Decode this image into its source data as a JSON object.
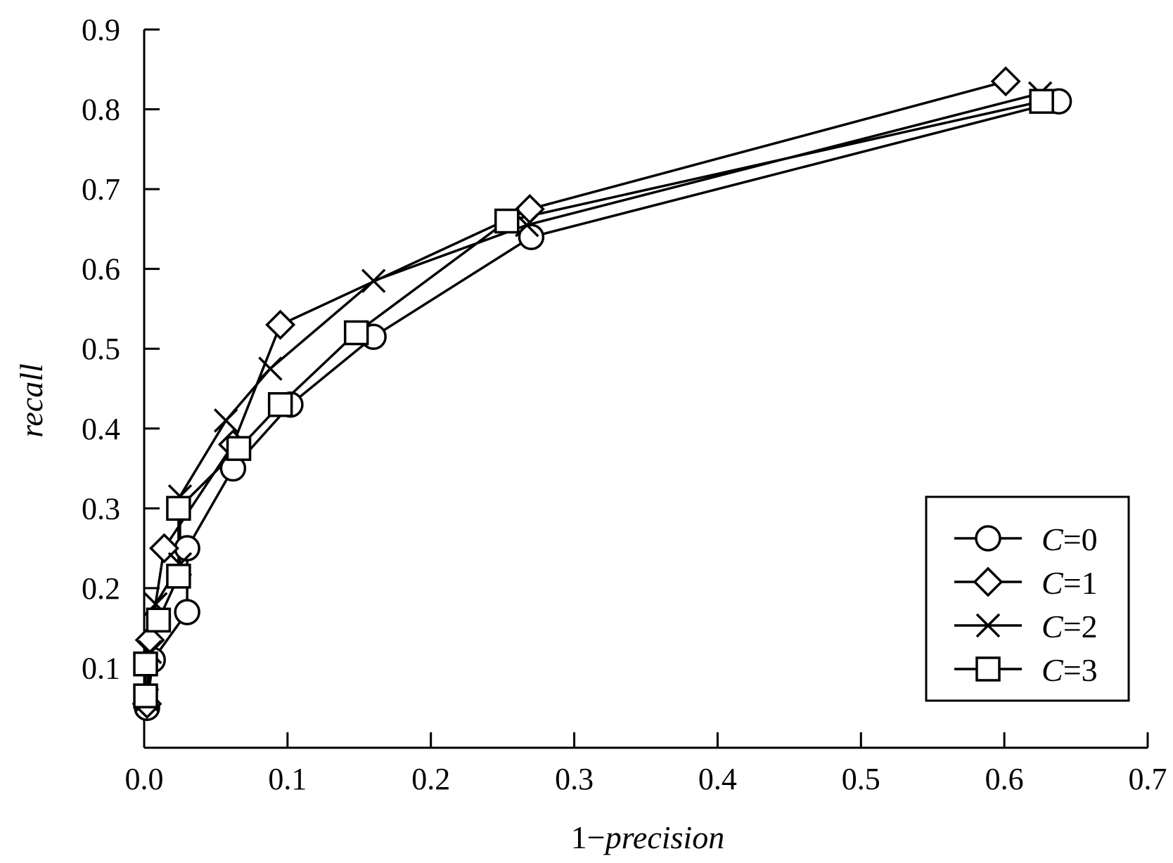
{
  "chart_data": {
    "type": "line",
    "title": "",
    "xlabel": {
      "prefix": "1−",
      "italic": "precision"
    },
    "ylabel": "recall",
    "xlim": [
      0,
      0.7
    ],
    "ylim": [
      0,
      0.9
    ],
    "xticks": [
      "0.0",
      "0.1",
      "0.2",
      "0.3",
      "0.4",
      "0.5",
      "0.6",
      "0.7"
    ],
    "yticks": [
      "0.1",
      "0.2",
      "0.3",
      "0.4",
      "0.5",
      "0.6",
      "0.7",
      "0.8",
      "0.9"
    ],
    "legend_position": "bottom-right",
    "grid": false,
    "series": [
      {
        "name_italic": "C",
        "name_rest": "=0",
        "marker": "circle",
        "points": [
          [
            0.002,
            0.05
          ],
          [
            0.006,
            0.11
          ],
          [
            0.03,
            0.17
          ],
          [
            0.03,
            0.25
          ],
          [
            0.062,
            0.35
          ],
          [
            0.102,
            0.43
          ],
          [
            0.16,
            0.515
          ],
          [
            0.27,
            0.64
          ],
          [
            0.638,
            0.81
          ]
        ]
      },
      {
        "name_italic": "C",
        "name_rest": "=1",
        "marker": "diamond",
        "points": [
          [
            0.002,
            0.055
          ],
          [
            0.004,
            0.135
          ],
          [
            0.014,
            0.25
          ],
          [
            0.062,
            0.38
          ],
          [
            0.095,
            0.53
          ],
          [
            0.269,
            0.675
          ],
          [
            0.601,
            0.835
          ]
        ]
      },
      {
        "name_italic": "C",
        "name_rest": "=2",
        "marker": "cross",
        "points": [
          [
            0.002,
            0.06
          ],
          [
            0.004,
            0.12
          ],
          [
            0.008,
            0.18
          ],
          [
            0.025,
            0.23
          ],
          [
            0.025,
            0.315
          ],
          [
            0.057,
            0.41
          ],
          [
            0.088,
            0.475
          ],
          [
            0.16,
            0.585
          ],
          [
            0.267,
            0.655
          ],
          [
            0.625,
            0.82
          ]
        ]
      },
      {
        "name_italic": "C",
        "name_rest": "=3",
        "marker": "square",
        "points": [
          [
            0.001,
            0.065
          ],
          [
            0.001,
            0.105
          ],
          [
            0.01,
            0.16
          ],
          [
            0.024,
            0.215
          ],
          [
            0.024,
            0.3
          ],
          [
            0.066,
            0.375
          ],
          [
            0.095,
            0.43
          ],
          [
            0.148,
            0.52
          ],
          [
            0.253,
            0.66
          ],
          [
            0.626,
            0.81
          ]
        ]
      }
    ]
  }
}
